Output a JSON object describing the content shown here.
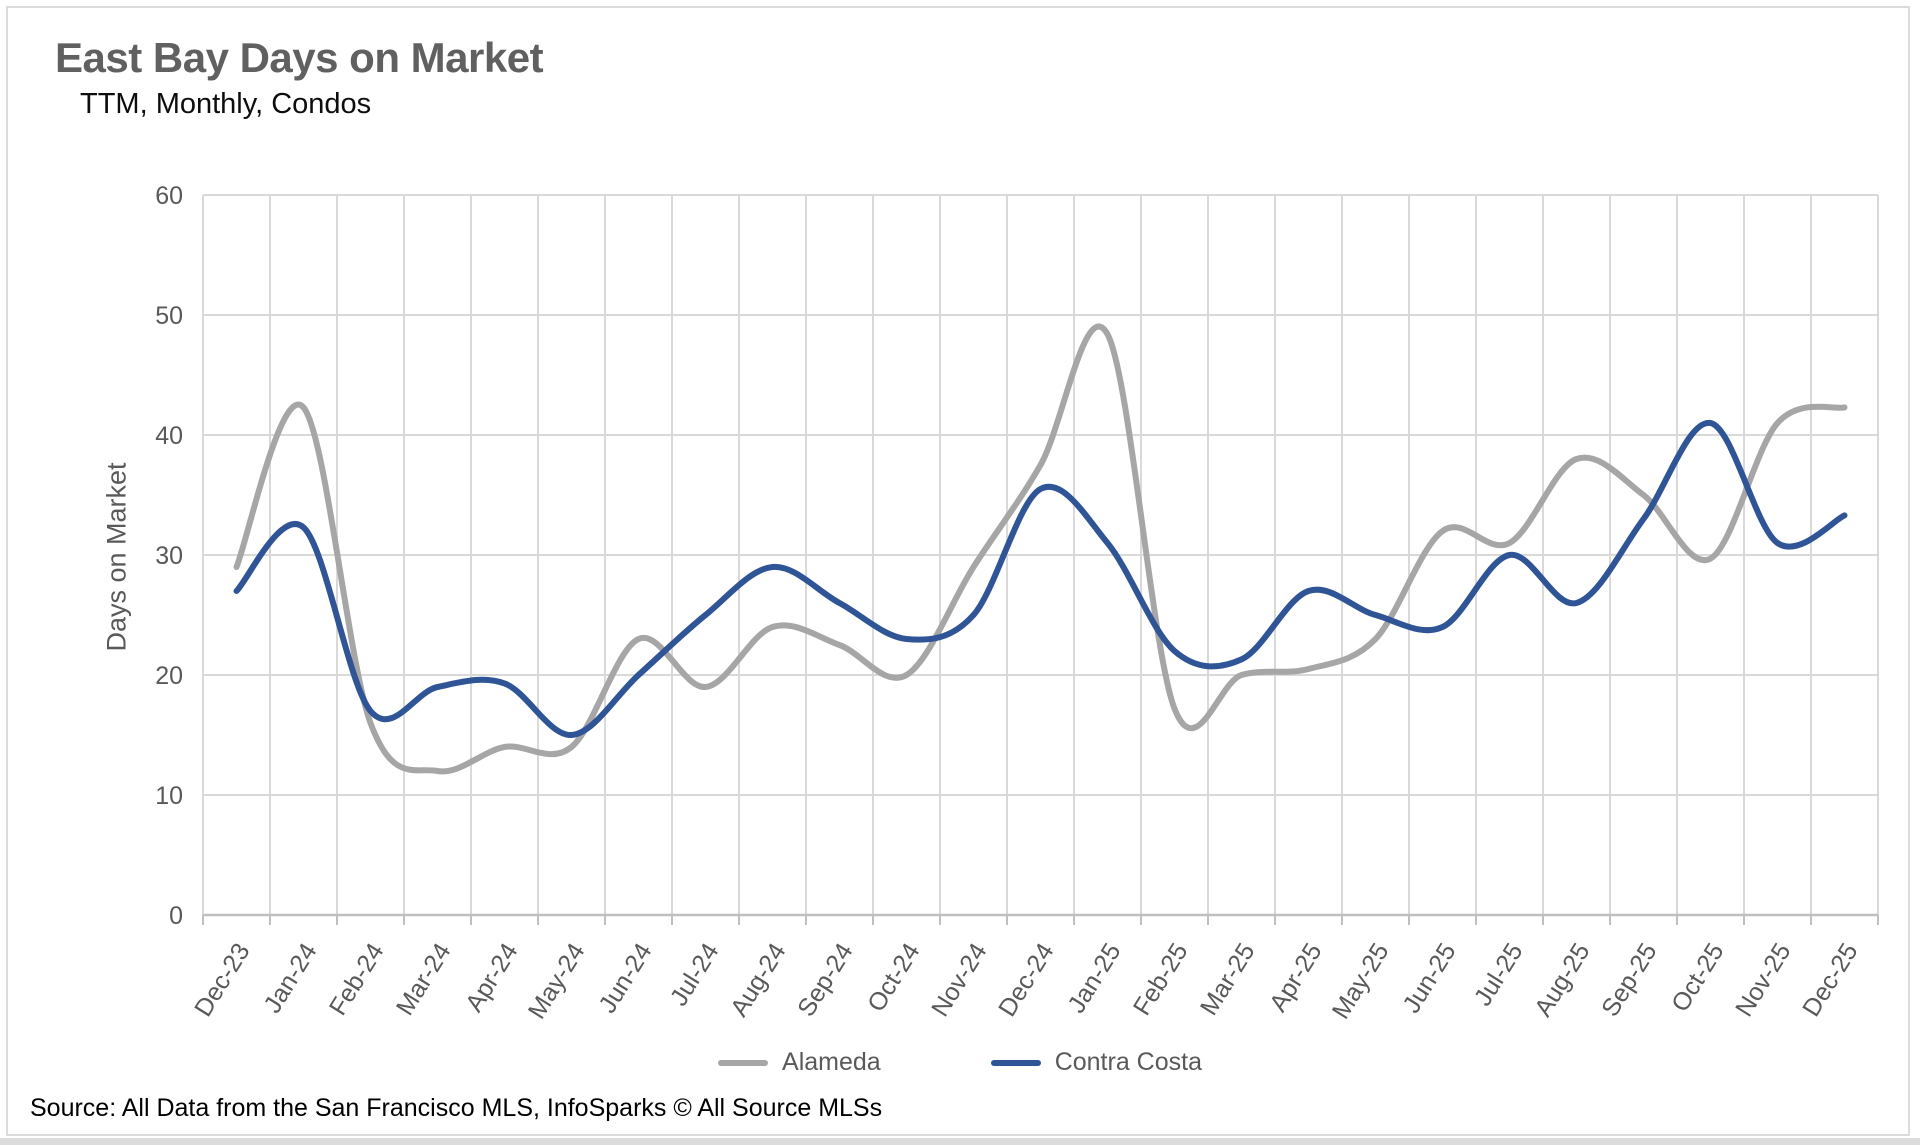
{
  "header": {
    "title": "East Bay Days on Market",
    "subtitle": "TTM, Monthly, Condos"
  },
  "footer": {
    "source": "Source: All Data from the San Francisco MLS, InfoSparks © All Source MLSs"
  },
  "chart_data": {
    "type": "line",
    "title": "East Bay Days on Market",
    "subtitle": "TTM, Monthly, Condos",
    "xlabel": "",
    "ylabel": "Days on Market",
    "ylim": [
      0,
      60
    ],
    "yticks": [
      0,
      10,
      20,
      30,
      40,
      50,
      60
    ],
    "grid": true,
    "smooth": true,
    "legend_position": "bottom",
    "categories": [
      "Dec-23",
      "Jan-24",
      "Feb-24",
      "Mar-24",
      "Apr-24",
      "May-24",
      "Jun-24",
      "Jul-24",
      "Aug-24",
      "Sep-24",
      "Oct-24",
      "Nov-24",
      "Dec-24",
      "Jan-25",
      "Feb-25",
      "Mar-25",
      "Apr-25",
      "May-25",
      "Jun-25",
      "Jul-25",
      "Aug-25",
      "Sep-25",
      "Oct-25",
      "Nov-25",
      "Dec-25"
    ],
    "series": [
      {
        "name": "Alameda",
        "color": "#A6A6A6",
        "values": [
          29,
          42.3,
          16,
          12,
          14,
          14,
          23,
          19,
          24,
          22.5,
          20,
          29,
          37.5,
          48.4,
          17.2,
          20,
          20.5,
          23,
          32,
          31,
          38,
          35,
          29.7,
          41,
          42.3
        ]
      },
      {
        "name": "Contra Costa",
        "color": "#2F5597",
        "values": [
          27,
          32.3,
          17,
          19,
          19.3,
          15,
          20,
          25,
          29,
          26,
          23,
          25,
          35.5,
          31,
          22,
          21.3,
          27,
          25,
          24,
          30,
          26,
          33,
          41,
          31,
          33.3
        ]
      }
    ]
  },
  "colors": {
    "gridline": "#D9D9D9",
    "axis_line": "#BFBFBF",
    "tick_label": "#595959",
    "title": "#606060",
    "alameda_line": "#A6A6A6",
    "contra_costa_line": "#2F5597"
  }
}
